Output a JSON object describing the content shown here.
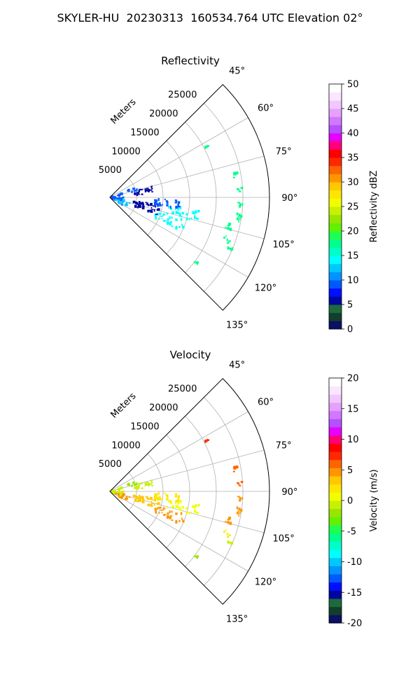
{
  "figure_title": "SKYLER-HU  20230313  160534.764 UTC Elevation 02°",
  "chart_data": [
    {
      "type": "polar-sector",
      "title": "Reflectivity",
      "range_label": "Meters",
      "range_ticks": [
        "5000",
        "10000",
        "15000",
        "20000",
        "25000"
      ],
      "range_tick_values": [
        5000,
        10000,
        15000,
        20000,
        25000
      ],
      "range_max": 30000,
      "azimuth_ticks": [
        "45°",
        "60°",
        "75°",
        "90°",
        "105°",
        "120°",
        "135°"
      ],
      "azimuth_tick_values": [
        45,
        60,
        75,
        90,
        105,
        120,
        135
      ],
      "azimuth_range": [
        45,
        135
      ],
      "grid": true,
      "colorbar": {
        "label": "Reflectivity dBZ",
        "min": 0,
        "max": 50,
        "ticks": [
          "0",
          "5",
          "10",
          "15",
          "20",
          "25",
          "30",
          "35",
          "40",
          "45",
          "50"
        ],
        "tick_values": [
          0,
          5,
          10,
          15,
          20,
          25,
          30,
          35,
          40,
          45,
          50
        ],
        "colors": [
          "#0a1064",
          "#123f2b",
          "#1d6b3b",
          "#0006a0",
          "#0010ff",
          "#0058ff",
          "#0094ff",
          "#00c8ff",
          "#00ffff",
          "#00ffc8",
          "#00ff8c",
          "#1eff50",
          "#64f000",
          "#96e600",
          "#c8f000",
          "#f0ff00",
          "#ffe600",
          "#ffc800",
          "#ff9600",
          "#ff6400",
          "#ff2800",
          "#ff0000",
          "#ff0078",
          "#e600ff",
          "#b450ff",
          "#d278ff",
          "#e6a0ff",
          "#f0c8ff",
          "#fae6ff",
          "#ffffff"
        ]
      },
      "echoes": [
        {
          "az": 62,
          "r": 20500,
          "value": 17,
          "n": 3,
          "spread": [
            1,
            500
          ]
        },
        {
          "az": 80,
          "r": 24000,
          "value": 17,
          "n": 6,
          "spread": [
            1.5,
            600
          ]
        },
        {
          "az": 86,
          "r": 24500,
          "value": 17,
          "n": 6,
          "spread": [
            1.5,
            500
          ]
        },
        {
          "az": 93,
          "r": 24500,
          "value": 17,
          "n": 6,
          "spread": [
            1.5,
            500
          ]
        },
        {
          "az": 99,
          "r": 24500,
          "value": 17,
          "n": 8,
          "spread": [
            2,
            700
          ]
        },
        {
          "az": 104,
          "r": 23000,
          "value": 17,
          "n": 8,
          "spread": [
            2,
            700
          ]
        },
        {
          "az": 110,
          "r": 23500,
          "value": 17,
          "n": 5,
          "spread": [
            2,
            700
          ]
        },
        {
          "az": 114,
          "r": 24500,
          "value": 17,
          "n": 4,
          "spread": [
            1.5,
            600
          ]
        },
        {
          "az": 127,
          "r": 20500,
          "value": 17,
          "n": 4,
          "spread": [
            1,
            500
          ]
        },
        {
          "az": 102,
          "r": 14000,
          "value": 14,
          "n": 30,
          "spread": [
            4,
            3000
          ]
        },
        {
          "az": 111,
          "r": 12000,
          "value": 14,
          "n": 30,
          "spread": [
            4,
            3000
          ]
        },
        {
          "az": 96,
          "r": 11000,
          "value": 9,
          "n": 30,
          "spread": [
            4,
            2500
          ]
        },
        {
          "az": 104,
          "r": 7000,
          "value": 5,
          "n": 40,
          "spread": [
            6,
            2500
          ]
        },
        {
          "az": 80,
          "r": 6500,
          "value": 5,
          "n": 25,
          "spread": [
            5,
            2000
          ]
        },
        {
          "az": 72,
          "r": 4500,
          "value": 9,
          "n": 8,
          "spread": [
            4,
            1000
          ]
        },
        {
          "az": 95,
          "r": 1500,
          "value": 9,
          "n": 30,
          "spread": [
            25,
            1200
          ]
        },
        {
          "az": 112,
          "r": 2500,
          "value": 12,
          "n": 15,
          "spread": [
            10,
            1500
          ]
        }
      ]
    },
    {
      "type": "polar-sector",
      "title": "Velocity",
      "range_label": "Meters",
      "range_ticks": [
        "5000",
        "10000",
        "15000",
        "20000",
        "25000"
      ],
      "range_tick_values": [
        5000,
        10000,
        15000,
        20000,
        25000
      ],
      "range_max": 30000,
      "azimuth_ticks": [
        "45°",
        "60°",
        "75°",
        "90°",
        "105°",
        "120°",
        "135°"
      ],
      "azimuth_tick_values": [
        45,
        60,
        75,
        90,
        105,
        120,
        135
      ],
      "azimuth_range": [
        45,
        135
      ],
      "grid": true,
      "colorbar": {
        "label": "Velocity (m/s)",
        "min": -20,
        "max": 20,
        "ticks": [
          "-20",
          "-15",
          "-10",
          "-5",
          "0",
          "5",
          "10",
          "15",
          "20"
        ],
        "tick_values": [
          -20,
          -15,
          -10,
          -5,
          0,
          5,
          10,
          15,
          20
        ],
        "colors": [
          "#0a1064",
          "#123f2b",
          "#1d6b3b",
          "#0006a0",
          "#0010ff",
          "#0058ff",
          "#0094ff",
          "#00c8ff",
          "#00ffff",
          "#00ffc8",
          "#00ff8c",
          "#1eff50",
          "#64f000",
          "#96e600",
          "#c8f000",
          "#f0ff00",
          "#ffe600",
          "#ffc800",
          "#ff9600",
          "#ff6400",
          "#ff2800",
          "#ff0000",
          "#ff0078",
          "#e600ff",
          "#b450ff",
          "#d278ff",
          "#e6a0ff",
          "#f0c8ff",
          "#fae6ff",
          "#ffffff"
        ]
      },
      "echoes": [
        {
          "az": 62,
          "r": 20500,
          "value": 7,
          "n": 3,
          "spread": [
            1,
            500
          ]
        },
        {
          "az": 80,
          "r": 24000,
          "value": 6,
          "n": 6,
          "spread": [
            1.5,
            600
          ]
        },
        {
          "az": 86,
          "r": 24500,
          "value": 6,
          "n": 6,
          "spread": [
            1.5,
            500
          ]
        },
        {
          "az": 93,
          "r": 24500,
          "value": 5,
          "n": 6,
          "spread": [
            1.5,
            500
          ]
        },
        {
          "az": 99,
          "r": 24500,
          "value": 5,
          "n": 8,
          "spread": [
            2,
            700
          ]
        },
        {
          "az": 104,
          "r": 23000,
          "value": 4,
          "n": 8,
          "spread": [
            2,
            700
          ]
        },
        {
          "az": 110,
          "r": 23500,
          "value": 2,
          "n": 5,
          "spread": [
            2,
            700
          ]
        },
        {
          "az": 114,
          "r": 24500,
          "value": -1,
          "n": 4,
          "spread": [
            1.5,
            600
          ]
        },
        {
          "az": 127,
          "r": 20500,
          "value": -2,
          "n": 4,
          "spread": [
            1,
            500
          ]
        },
        {
          "az": 102,
          "r": 14000,
          "value": 1,
          "n": 30,
          "spread": [
            4,
            3000
          ]
        },
        {
          "az": 111,
          "r": 12000,
          "value": 4,
          "n": 30,
          "spread": [
            4,
            3000
          ]
        },
        {
          "az": 96,
          "r": 11000,
          "value": 2,
          "n": 30,
          "spread": [
            4,
            2500
          ]
        },
        {
          "az": 104,
          "r": 7000,
          "value": 3,
          "n": 40,
          "spread": [
            6,
            2500
          ]
        },
        {
          "az": 80,
          "r": 6500,
          "value": -1,
          "n": 25,
          "spread": [
            5,
            2000
          ]
        },
        {
          "az": 72,
          "r": 4500,
          "value": -2,
          "n": 8,
          "spread": [
            4,
            1000
          ]
        },
        {
          "az": 95,
          "r": 1500,
          "value": -1,
          "n": 30,
          "spread": [
            25,
            1200
          ]
        },
        {
          "az": 112,
          "r": 2500,
          "value": 4,
          "n": 15,
          "spread": [
            10,
            1500
          ]
        }
      ]
    }
  ]
}
